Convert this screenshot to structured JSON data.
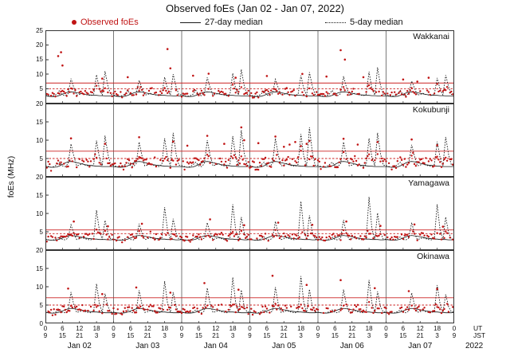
{
  "chart_data": {
    "type": "scatter",
    "title": "Observed foEs (Jan 02 - Jan 07, 2022)",
    "ylabel": "foEs (MHz)",
    "legend": [
      {
        "label": "Observed foEs",
        "style": "dot",
        "color": "#c01414"
      },
      {
        "label": "27-day median",
        "style": "solid-line",
        "color": "#1a1a1a"
      },
      {
        "label": "5-day median",
        "style": "dotted-line",
        "color": "#1a1a1a"
      }
    ],
    "colors": {
      "observed": "#c01414",
      "median": "#1a1a1a",
      "threshold": "#cc2222",
      "grid": "#7a7a7a",
      "border": "#333333"
    },
    "x_axis": {
      "hours_span": 144,
      "tick_step_hours": 6,
      "ut_tick_labels": [
        "0",
        "6",
        "12",
        "18"
      ],
      "jst_tick_labels": [
        "9",
        "15",
        "21",
        "3"
      ],
      "ut_label": "UT",
      "jst_label": "JST",
      "day_labels": [
        "Jan 02",
        "Jan 03",
        "Jan 04",
        "Jan 05",
        "Jan 06",
        "Jan 07"
      ],
      "year_label": "2022"
    },
    "panels": [
      {
        "station": "Wakkanai",
        "ylim": [
          0,
          25
        ],
        "yticks": [
          5,
          10,
          15,
          20,
          25
        ],
        "threshold_solid": 7,
        "threshold_dotted": 5,
        "median27_diurnal": [
          2.6,
          2.5,
          2.4,
          2.4,
          2.5,
          2.8,
          3.2,
          3.6,
          3.9,
          4.0,
          3.9,
          3.7,
          3.5,
          3.3,
          3.1,
          3.0,
          2.9,
          2.8,
          2.8,
          2.7,
          2.7,
          2.6,
          2.6,
          2.6
        ],
        "median5_diurnal": [
          3.0,
          2.6,
          2.5,
          2.7,
          3.2,
          4.5,
          2.9,
          2.7,
          3.4,
          8.5,
          5.5,
          2.9,
          3.1,
          3.5,
          3.1,
          2.9,
          2.7,
          3.2,
          9.8,
          5.0,
          2.9,
          11.0,
          6.0,
          3.1
        ],
        "base_diurnal": [
          3.2,
          3.0,
          2.8,
          2.9,
          3.4,
          4.2,
          3.6,
          3.3,
          3.8,
          5.5,
          4.2,
          3.6,
          3.8,
          4.4,
          4.0,
          3.7,
          3.4,
          3.9,
          5.8,
          4.0,
          3.5,
          5.2,
          4.0,
          3.5
        ],
        "day_scale": [
          1.0,
          0.85,
          1.1,
          0.95,
          1.2,
          0.8
        ],
        "jitter": 1.1,
        "dropout": 0.25,
        "seed": 11,
        "spikes": [
          [
            4.5,
            16.2
          ],
          [
            5.5,
            17.5
          ],
          [
            6,
            13.0
          ],
          [
            20,
            8.5
          ],
          [
            29,
            9.0
          ],
          [
            43,
            18.6
          ],
          [
            44,
            12.0
          ],
          [
            52,
            9.5
          ],
          [
            57.5,
            10.2
          ],
          [
            67,
            8.8
          ],
          [
            78,
            9.4
          ],
          [
            90.5,
            10.1
          ],
          [
            99,
            9.2
          ],
          [
            104,
            18.2
          ],
          [
            105.5,
            15.0
          ],
          [
            112,
            9.0
          ],
          [
            126,
            8.2
          ],
          [
            131,
            7.5
          ],
          [
            135,
            8.8
          ]
        ]
      },
      {
        "station": "Kokubunji",
        "ylim": [
          0,
          20
        ],
        "yticks": [
          5,
          10,
          15,
          20
        ],
        "threshold_solid": 7,
        "threshold_dotted": 5,
        "median27_diurnal": [
          2.8,
          2.7,
          2.6,
          2.6,
          2.7,
          3.0,
          3.4,
          3.8,
          4.1,
          4.2,
          4.1,
          3.9,
          3.7,
          3.5,
          3.3,
          3.2,
          3.1,
          3.0,
          2.9,
          2.9,
          2.8,
          2.8,
          2.8,
          2.8
        ],
        "median5_diurnal": [
          3.1,
          2.8,
          2.6,
          2.8,
          3.3,
          4.0,
          3.0,
          2.8,
          3.6,
          9.5,
          5.8,
          3.0,
          3.2,
          3.6,
          3.2,
          3.0,
          2.8,
          3.4,
          10.5,
          5.4,
          3.0,
          12.0,
          6.4,
          3.2
        ],
        "base_diurnal": [
          3.4,
          3.1,
          2.9,
          3.0,
          3.5,
          4.5,
          3.8,
          3.5,
          4.0,
          6.0,
          4.5,
          3.8,
          4.0,
          4.6,
          4.2,
          3.9,
          3.6,
          4.1,
          6.2,
          4.2,
          3.7,
          5.5,
          4.2,
          3.7
        ],
        "day_scale": [
          0.9,
          1.0,
          1.1,
          1.2,
          1.0,
          0.85
        ],
        "jitter": 1.3,
        "dropout": 0.2,
        "seed": 22,
        "spikes": [
          [
            9,
            10.5
          ],
          [
            21,
            9.0
          ],
          [
            33,
            10.8
          ],
          [
            45,
            9.6
          ],
          [
            50,
            8.5
          ],
          [
            57,
            11.2
          ],
          [
            63,
            9.0
          ],
          [
            69,
            13.5
          ],
          [
            70,
            10.0
          ],
          [
            75,
            9.2
          ],
          [
            81,
            11.0
          ],
          [
            84,
            8.2
          ],
          [
            86,
            8.8
          ],
          [
            88,
            9.5
          ],
          [
            90,
            8.4
          ],
          [
            92,
            9.0
          ],
          [
            93,
            9.8
          ],
          [
            105,
            10.4
          ],
          [
            110,
            8.8
          ],
          [
            117,
            9.5
          ],
          [
            129,
            10.2
          ],
          [
            138,
            8.6
          ]
        ]
      },
      {
        "station": "Yamagawa",
        "ylim": [
          0,
          20
        ],
        "yticks": [
          5,
          10,
          15,
          20
        ],
        "threshold_solid": 5.5,
        "threshold_dotted": 4.5,
        "median27_diurnal": [
          2.9,
          2.8,
          2.7,
          2.7,
          2.8,
          3.0,
          3.3,
          3.6,
          3.9,
          4.0,
          3.9,
          3.8,
          3.6,
          3.5,
          3.3,
          3.2,
          3.1,
          3.0,
          3.0,
          2.9,
          2.9,
          2.9,
          2.8,
          2.8
        ],
        "median5_diurnal": [
          3.0,
          2.8,
          2.7,
          2.8,
          3.1,
          3.6,
          2.9,
          2.8,
          3.3,
          7.5,
          4.6,
          2.9,
          3.1,
          3.4,
          3.1,
          2.9,
          2.8,
          3.2,
          12.5,
          5.6,
          2.9,
          9.0,
          4.8,
          3.0
        ],
        "base_diurnal": [
          3.3,
          3.1,
          3.0,
          3.0,
          3.3,
          3.8,
          3.5,
          3.3,
          3.6,
          4.8,
          4.0,
          3.5,
          3.7,
          4.2,
          3.9,
          3.6,
          3.4,
          3.8,
          5.0,
          3.8,
          3.4,
          4.6,
          3.8,
          3.4
        ],
        "day_scale": [
          0.8,
          0.9,
          1.0,
          1.1,
          1.25,
          1.0
        ],
        "jitter": 0.9,
        "dropout": 0.3,
        "seed": 33,
        "spikes": [
          [
            10,
            7.8
          ],
          [
            22,
            6.5
          ],
          [
            34,
            7.2
          ],
          [
            58,
            8.4
          ],
          [
            70,
            6.8
          ],
          [
            82,
            7.5
          ],
          [
            94,
            6.9
          ],
          [
            106,
            7.8
          ],
          [
            118,
            6.6
          ],
          [
            130,
            7.0
          ],
          [
            140,
            6.4
          ]
        ]
      },
      {
        "station": "Okinawa",
        "ylim": [
          0,
          20
        ],
        "yticks": [
          0,
          5,
          10,
          15,
          20
        ],
        "threshold_solid": 7,
        "threshold_dotted": 5,
        "median27_diurnal": [
          3.0,
          2.9,
          2.8,
          2.8,
          2.9,
          3.1,
          3.4,
          3.7,
          4.0,
          4.1,
          4.0,
          3.9,
          3.7,
          3.6,
          3.4,
          3.3,
          3.2,
          3.1,
          3.1,
          3.0,
          3.0,
          2.9,
          2.9,
          2.9
        ],
        "median5_diurnal": [
          3.1,
          2.9,
          2.8,
          2.9,
          3.2,
          3.7,
          3.0,
          2.9,
          3.4,
          9.0,
          5.2,
          3.0,
          3.2,
          3.5,
          3.2,
          3.0,
          2.9,
          3.3,
          11.5,
          5.5,
          3.0,
          8.5,
          4.6,
          3.1
        ],
        "base_diurnal": [
          3.5,
          3.3,
          3.2,
          3.2,
          3.5,
          4.0,
          3.7,
          3.5,
          3.8,
          5.0,
          4.2,
          3.7,
          3.9,
          4.4,
          4.1,
          3.8,
          3.6,
          4.0,
          5.2,
          4.0,
          3.6,
          4.8,
          4.0,
          3.6
        ],
        "day_scale": [
          0.9,
          1.0,
          1.15,
          1.2,
          1.05,
          0.85
        ],
        "jitter": 1.0,
        "dropout": 0.25,
        "seed": 44,
        "spikes": [
          [
            8,
            9.5
          ],
          [
            20,
            8.0
          ],
          [
            32,
            9.8
          ],
          [
            44,
            8.4
          ],
          [
            56,
            11.0
          ],
          [
            68,
            9.2
          ],
          [
            80,
            13.0
          ],
          [
            92,
            10.5
          ],
          [
            104,
            11.8
          ],
          [
            116,
            9.6
          ],
          [
            128,
            8.8
          ],
          [
            138,
            9.4
          ]
        ]
      }
    ]
  }
}
